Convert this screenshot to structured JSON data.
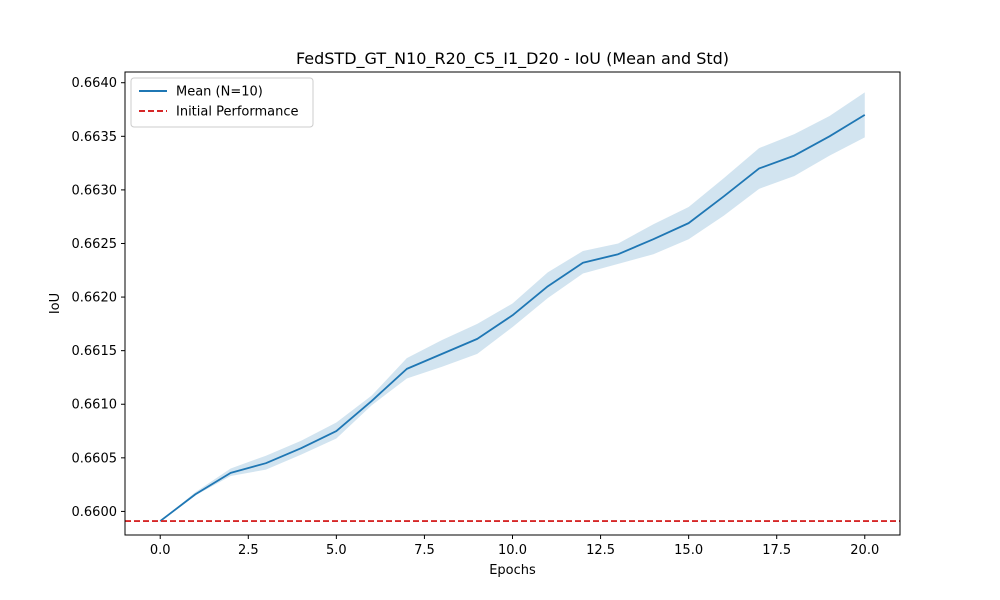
{
  "chart_data": {
    "type": "line",
    "title": "FedSTD_GT_N10_R20_C5_I1_D20 - IoU (Mean and Std)",
    "xlabel": "Epochs",
    "ylabel": "IoU",
    "xlim": [
      -1.0,
      21.0
    ],
    "ylim": [
      0.65978,
      0.6641
    ],
    "x_ticks": [
      0.0,
      2.5,
      5.0,
      7.5,
      10.0,
      12.5,
      15.0,
      17.5,
      20.0
    ],
    "x_tick_labels": [
      "0.0",
      "2.5",
      "5.0",
      "7.5",
      "10.0",
      "12.5",
      "15.0",
      "17.5",
      "20.0"
    ],
    "y_ticks": [
      0.66,
      0.6605,
      0.661,
      0.6615,
      0.662,
      0.6625,
      0.663,
      0.6635,
      0.664
    ],
    "y_tick_labels": [
      "0.6600",
      "0.6605",
      "0.6610",
      "0.6615",
      "0.6620",
      "0.6625",
      "0.6630",
      "0.6635",
      "0.6640"
    ],
    "grid": false,
    "legend_position": "top-left",
    "x": [
      0,
      1,
      2,
      3,
      4,
      5,
      6,
      7,
      8,
      9,
      10,
      11,
      12,
      13,
      14,
      15,
      16,
      17,
      18,
      19,
      20
    ],
    "series": [
      {
        "name": "Mean (N=10)",
        "kind": "line",
        "color": "#1f77b4",
        "values": [
          0.65991,
          0.66016,
          0.66036,
          0.66045,
          0.66059,
          0.66075,
          0.66103,
          0.66133,
          0.66147,
          0.66161,
          0.66183,
          0.6621,
          0.66232,
          0.6624,
          0.66254,
          0.66269,
          0.66294,
          0.6632,
          0.66332,
          0.6635,
          0.6637
        ],
        "std_band": {
          "color": "#1f77b4",
          "opacity": 0.2,
          "lower": [
            0.65991,
            0.66015,
            0.66033,
            0.66039,
            0.66053,
            0.66068,
            0.66099,
            0.66124,
            0.66135,
            0.66147,
            0.66172,
            0.66199,
            0.66222,
            0.66231,
            0.6624,
            0.66254,
            0.66276,
            0.66301,
            0.66313,
            0.66332,
            0.66349
          ],
          "upper": [
            0.65991,
            0.66018,
            0.6604,
            0.66052,
            0.66066,
            0.66083,
            0.66108,
            0.66143,
            0.6616,
            0.66175,
            0.66194,
            0.66223,
            0.66243,
            0.6625,
            0.66268,
            0.66284,
            0.66311,
            0.66339,
            0.66352,
            0.66369,
            0.66391
          ]
        }
      },
      {
        "name": "Initial Performance",
        "kind": "hline",
        "color": "#d62728",
        "dashed": true,
        "value": 0.65991
      }
    ]
  }
}
